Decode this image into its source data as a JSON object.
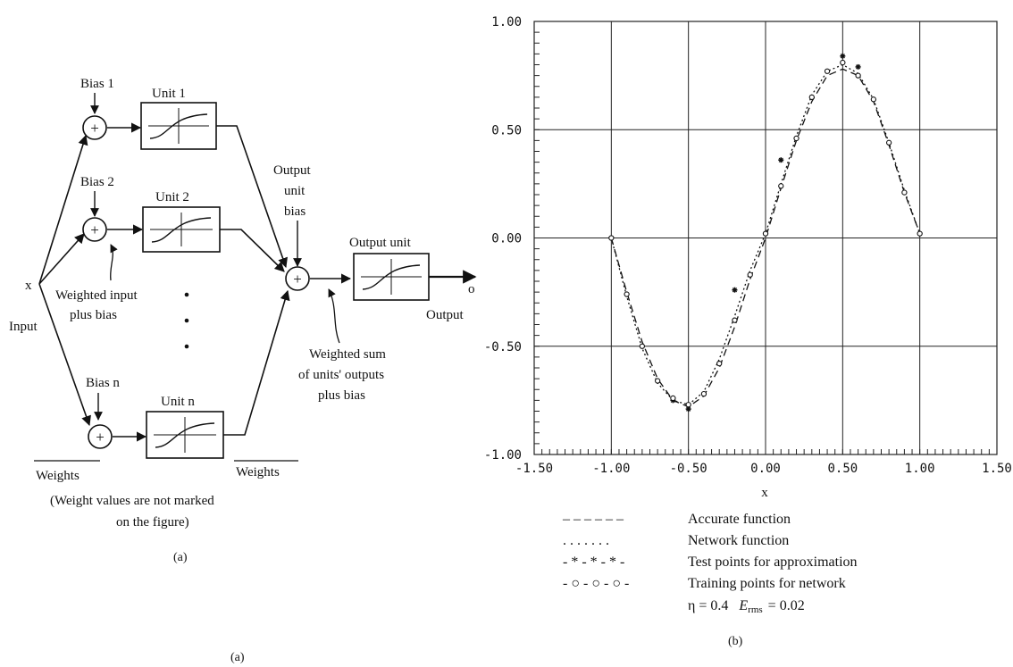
{
  "diagram": {
    "input_symbol": "x",
    "input_label": "Input",
    "output_symbol": "o",
    "output_label": "Output",
    "hidden_units": [
      {
        "bias": "Bias 1",
        "unit": "Unit 1"
      },
      {
        "bias": "Bias 2",
        "unit": "Unit 2"
      },
      {
        "bias": "Bias n",
        "unit": "Unit n"
      }
    ],
    "sum_symbol": "+",
    "weighted_input_label": [
      "Weighted input",
      "plus bias"
    ],
    "output_bias_label": [
      "Output",
      "unit",
      "bias"
    ],
    "output_unit_label": "Output unit",
    "weighted_sum_label": [
      "Weighted sum",
      "of units' outputs",
      "plus bias"
    ],
    "weights_left": "Weights",
    "weights_right": "Weights",
    "note": [
      "(Weight values are not marked",
      "on the figure)"
    ],
    "sub_caption": "(a)"
  },
  "captions": {
    "left": "(a)",
    "right": "(b)"
  },
  "chart_data": {
    "type": "line",
    "xlabel": "x",
    "xlim": [
      -1.5,
      1.5
    ],
    "ylim": [
      -1.0,
      1.0
    ],
    "xticks": [
      "-1.50",
      "-1.00",
      "-0.50",
      "0.00",
      "0.50",
      "1.00",
      "1.50"
    ],
    "yticks": [
      "1.00",
      "0.50",
      "0.00",
      "-0.50",
      "-1.00"
    ],
    "grid": true,
    "legend_position": "below",
    "series": [
      {
        "name": "Accurate function",
        "style": "dashed",
        "x": [
          -1.0,
          -0.9,
          -0.8,
          -0.7,
          -0.6,
          -0.5,
          -0.4,
          -0.3,
          -0.2,
          -0.1,
          0.0,
          0.1,
          0.2,
          0.3,
          0.4,
          0.5,
          0.6,
          0.7,
          0.8,
          0.9,
          1.0
        ],
        "y": [
          0.0,
          -0.25,
          -0.48,
          -0.65,
          -0.75,
          -0.78,
          -0.73,
          -0.6,
          -0.41,
          -0.19,
          0.0,
          0.23,
          0.45,
          0.63,
          0.75,
          0.78,
          0.75,
          0.63,
          0.43,
          0.21,
          0.02
        ]
      },
      {
        "name": "Network function",
        "style": "dotted",
        "x": [
          -1.0,
          -0.9,
          -0.8,
          -0.7,
          -0.6,
          -0.5,
          -0.4,
          -0.3,
          -0.2,
          -0.1,
          0.0,
          0.1,
          0.2,
          0.3,
          0.4,
          0.5,
          0.6,
          0.7,
          0.8,
          0.9,
          1.0
        ],
        "y": [
          0.0,
          -0.27,
          -0.51,
          -0.67,
          -0.75,
          -0.77,
          -0.71,
          -0.56,
          -0.36,
          -0.15,
          0.02,
          0.25,
          0.47,
          0.66,
          0.77,
          0.8,
          0.76,
          0.64,
          0.44,
          0.22,
          0.02
        ]
      },
      {
        "name": "Test points for approximation",
        "style": "star",
        "x": [
          -0.6,
          -0.5,
          -0.2,
          0.1,
          0.5,
          0.6
        ],
        "y": [
          -0.75,
          -0.79,
          -0.24,
          0.36,
          0.84,
          0.79
        ]
      },
      {
        "name": "Training points for network",
        "style": "circle",
        "x": [
          -1.0,
          -0.9,
          -0.8,
          -0.7,
          -0.6,
          -0.5,
          -0.4,
          -0.3,
          -0.2,
          -0.1,
          0.0,
          0.1,
          0.2,
          0.3,
          0.4,
          0.5,
          0.6,
          0.7,
          0.8,
          0.9,
          1.0
        ],
        "y": [
          0.0,
          -0.26,
          -0.5,
          -0.66,
          -0.74,
          -0.77,
          -0.72,
          -0.58,
          -0.38,
          -0.17,
          0.02,
          0.24,
          0.46,
          0.65,
          0.77,
          0.81,
          0.75,
          0.64,
          0.44,
          0.21,
          0.02
        ]
      }
    ],
    "legend": [
      {
        "marker": "– – – – – –",
        "text": "Accurate function"
      },
      {
        "marker": ". . . . . . .",
        "text": "Network function"
      },
      {
        "marker": "- * - * - * -",
        "text": "Test points for approximation"
      },
      {
        "marker": "- ○ - ○ - ○ -",
        "text": "Training points for network"
      }
    ],
    "params": {
      "eta": "η = 0.4",
      "erms": "E",
      "erms_sub": "rms",
      "erms_val": "= 0.02"
    }
  }
}
